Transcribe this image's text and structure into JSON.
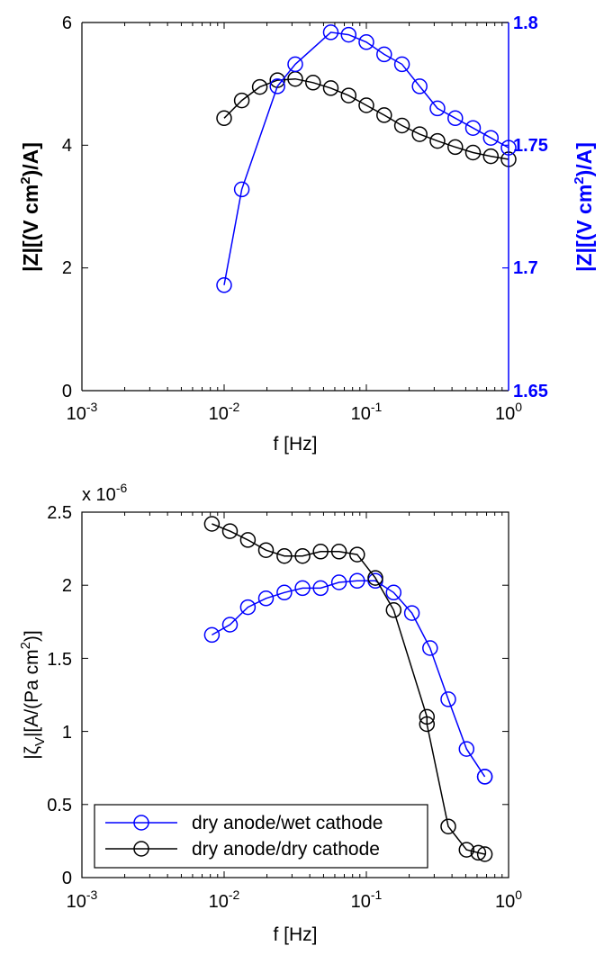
{
  "chart_data": [
    {
      "type": "line",
      "xscale": "log",
      "xlim": [
        0.001,
        1
      ],
      "xlabel": "f [Hz]",
      "x_ticks": [
        {
          "base": "10",
          "exp": "-3"
        },
        {
          "base": "10",
          "exp": "-2"
        },
        {
          "base": "10",
          "exp": "-1"
        },
        {
          "base": "10",
          "exp": "0"
        }
      ],
      "y_left": {
        "label_main": "|Z|[(V cm",
        "label_sup": "2",
        "label_end": ")/A]",
        "ylim": [
          0,
          6
        ],
        "ticks": [
          "0",
          "2",
          "4",
          "6"
        ],
        "color": "#000000"
      },
      "y_right": {
        "label_main": "|Z|[(V cm",
        "label_sup": "2",
        "label_end": ")/A]",
        "ylim": [
          1.65,
          1.8
        ],
        "ticks": [
          "1.65",
          "1.7",
          "1.75",
          "1.8"
        ],
        "color": "#0000ff"
      },
      "series": [
        {
          "name": "dry anode/dry cathode",
          "axis": "left",
          "color": "#000000",
          "x": [
            0.01,
            0.0133,
            0.0178,
            0.0237,
            0.0316,
            0.0422,
            0.0562,
            0.075,
            0.1,
            0.1334,
            0.178,
            0.2371,
            0.3162,
            0.4217,
            0.5623,
            0.7499,
            1.0
          ],
          "y": [
            4.44,
            4.73,
            4.95,
            5.06,
            5.08,
            5.02,
            4.93,
            4.81,
            4.65,
            4.49,
            4.32,
            4.18,
            4.07,
            3.97,
            3.88,
            3.82,
            3.77
          ]
        },
        {
          "name": "dry anode/wet cathode",
          "axis": "right",
          "color": "#0000ff",
          "x": [
            0.01,
            0.0133,
            0.0237,
            0.0316,
            0.0562,
            0.075,
            0.1,
            0.1334,
            0.178,
            0.2371,
            0.3162,
            0.4217,
            0.5623,
            0.7499,
            1.0
          ],
          "y": [
            1.693,
            1.732,
            1.774,
            1.783,
            1.796,
            1.795,
            1.792,
            1.787,
            1.783,
            1.774,
            1.765,
            1.761,
            1.757,
            1.753,
            1.749
          ]
        }
      ]
    },
    {
      "type": "line",
      "xscale": "log",
      "xlim": [
        0.001,
        1
      ],
      "xlabel": "f [Hz]",
      "x_ticks": [
        {
          "base": "10",
          "exp": "-3"
        },
        {
          "base": "10",
          "exp": "-2"
        },
        {
          "base": "10",
          "exp": "-1"
        },
        {
          "base": "10",
          "exp": "0"
        }
      ],
      "y_left": {
        "label_main": "|ζ",
        "label_sub": "V",
        "label_mid": "|[A/(Pa cm",
        "label_sup": "2",
        "label_end": ")]",
        "ylim": [
          0,
          2.5
        ],
        "ticks": [
          "0",
          "0.5",
          "1",
          "1.5",
          "2",
          "2.5"
        ],
        "multiplier_base": "x 10",
        "multiplier_exp": "-6"
      },
      "legend": {
        "position": "bottom-left",
        "entries": [
          "dry anode/wet cathode",
          "dry anode/dry cathode"
        ]
      },
      "series": [
        {
          "name": "dry anode/wet cathode",
          "color": "#0000ff",
          "x": [
            0.0082,
            0.011,
            0.0147,
            0.0197,
            0.0265,
            0.0356,
            0.0477,
            0.0642,
            0.0862,
            0.1157,
            0.1555,
            0.2089,
            0.2806,
            0.3769,
            0.5064,
            0.6803,
            0.6803
          ],
          "y": [
            1.66,
            1.73,
            1.85,
            1.91,
            1.95,
            1.98,
            1.98,
            2.02,
            2.03,
            2.03,
            1.95,
            1.81,
            1.57,
            1.22,
            0.88,
            0.69,
            0.69
          ]
        },
        {
          "name": "dry anode/dry cathode",
          "color": "#000000",
          "x": [
            0.0082,
            0.011,
            0.0147,
            0.0197,
            0.0265,
            0.0356,
            0.0477,
            0.0642,
            0.0862,
            0.1157,
            0.1555,
            0.2666,
            0.2666,
            0.3769,
            0.5064,
            0.6129,
            0.6803
          ],
          "y": [
            2.42,
            2.37,
            2.31,
            2.24,
            2.2,
            2.2,
            2.23,
            2.23,
            2.21,
            2.05,
            1.83,
            1.1,
            1.05,
            0.35,
            0.19,
            0.17,
            0.16
          ]
        }
      ]
    }
  ]
}
